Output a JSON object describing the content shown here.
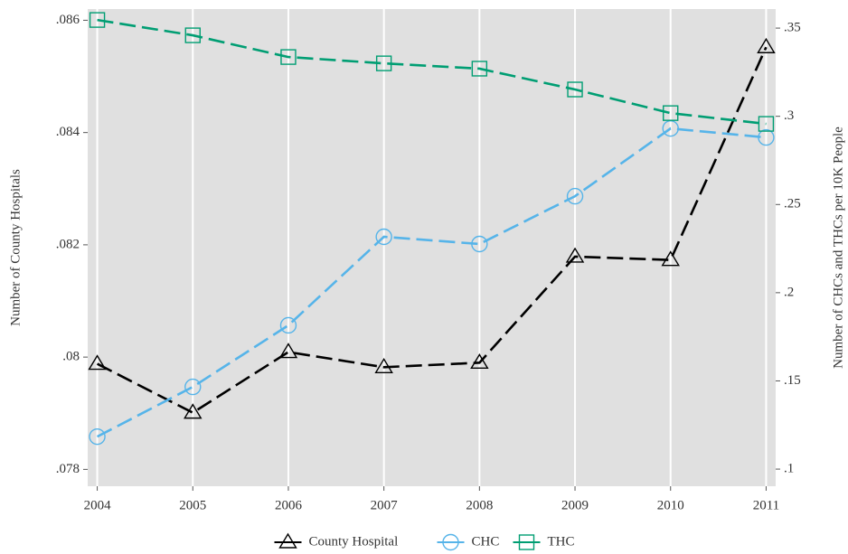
{
  "chart_data": {
    "type": "line",
    "x": [
      2004,
      2005,
      2006,
      2007,
      2008,
      2009,
      2010,
      2011
    ],
    "xlim": [
      2003.9,
      2011.1
    ],
    "xticks": [
      2004,
      2005,
      2006,
      2007,
      2008,
      2009,
      2010,
      2011
    ],
    "ylim": [
      0.0777,
      0.0862
    ],
    "yticks": [
      {
        "value": 0.078,
        "label": ".078"
      },
      {
        "value": 0.08,
        "label": ".08"
      },
      {
        "value": 0.082,
        "label": ".082"
      },
      {
        "value": 0.084,
        "label": ".084"
      },
      {
        "value": 0.086,
        "label": ".086"
      }
    ],
    "y2lim": [
      0.0903,
      0.3608
    ],
    "y2ticks": [
      {
        "value": 0.1,
        "label": ".1"
      },
      {
        "value": 0.15,
        "label": ".15"
      },
      {
        "value": 0.2,
        "label": ".2"
      },
      {
        "value": 0.25,
        "label": ".25"
      },
      {
        "value": 0.3,
        "label": ".3"
      },
      {
        "value": 0.35,
        "label": ".35"
      }
    ],
    "ylabel": "Number of County Hospitals",
    "y2label": "Number of CHCs and THCs per 10K People",
    "grid": "x",
    "background": "#e0e0e0",
    "legend": "bottom",
    "series": [
      {
        "name": "County Hospital",
        "color": "#000000",
        "marker": "triangle",
        "values": [
          0.07988,
          0.07901,
          0.08009,
          0.07982,
          0.0799,
          0.08179,
          0.08173,
          0.08552
        ]
      },
      {
        "name": "CHC",
        "color": "#56b4e9",
        "marker": "circle",
        "axis": "y2",
        "values": [
          0.1184,
          0.1466,
          0.1815,
          0.2317,
          0.2276,
          0.2547,
          0.2931,
          0.288
        ]
      },
      {
        "name": "THC",
        "color": "#009e73",
        "marker": "square",
        "axis": "y2",
        "values": [
          0.3546,
          0.3459,
          0.3336,
          0.33,
          0.327,
          0.3152,
          0.3018,
          0.2957
        ]
      }
    ]
  }
}
